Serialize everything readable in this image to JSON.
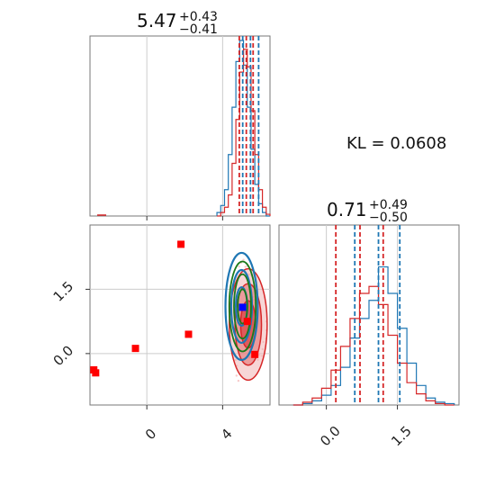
{
  "kl": {
    "text": "KL = 0.0608"
  },
  "chart_data": [
    {
      "type": "histogram",
      "panel": "marginal-param-1",
      "title": {
        "value": "5.47",
        "plus": "+0.43",
        "minus": "−0.41"
      },
      "xlim": [
        -3,
        6.5
      ],
      "grid": true,
      "series": [
        {
          "color": "#1f77b4",
          "x": [
            3.8,
            4.0,
            4.2,
            4.4,
            4.6,
            4.8,
            5.0,
            5.2,
            5.4,
            5.6,
            5.8,
            6.0,
            6.2,
            6.4
          ],
          "counts": [
            0.02,
            0.06,
            0.15,
            0.35,
            0.62,
            0.88,
            1.0,
            0.86,
            0.62,
            0.38,
            0.18,
            0.07,
            0.02,
            0.0
          ],
          "quantiles": [
            5.06,
            5.47,
            5.9
          ]
        },
        {
          "color": "#d62728",
          "x": [
            3.8,
            4.0,
            4.2,
            4.4,
            4.6,
            4.8,
            5.0,
            5.2,
            5.4,
            5.6,
            5.8,
            6.0,
            6.2,
            6.4
          ],
          "counts": [
            0.0,
            0.02,
            0.05,
            0.12,
            0.3,
            0.55,
            0.82,
            0.95,
            0.85,
            0.6,
            0.35,
            0.15,
            0.05,
            0.01
          ],
          "quantiles": [
            4.88,
            5.25,
            5.61
          ]
        }
      ]
    },
    {
      "type": "scatter-contour",
      "panel": "joint",
      "xlim": [
        -3,
        6.5
      ],
      "ylim": [
        -1.2,
        3.0
      ],
      "xticks": [
        "0",
        "4"
      ],
      "yticks": [
        "0.0",
        "1.5"
      ],
      "grid": true,
      "red_markers": [
        {
          "x": -2.8,
          "y": -0.38
        },
        {
          "x": -2.7,
          "y": -0.45
        },
        {
          "x": -0.6,
          "y": 0.12
        },
        {
          "x": 1.8,
          "y": 2.55
        },
        {
          "x": 2.2,
          "y": 0.45
        },
        {
          "x": 5.3,
          "y": 0.75
        },
        {
          "x": 5.7,
          "y": -0.02
        }
      ],
      "blue_marker": {
        "x": 5.05,
        "y": 1.08
      },
      "contours": {
        "red": {
          "center": [
            5.35,
            0.68
          ],
          "rx": [
            0.4,
            0.7,
            1.0
          ],
          "ry": [
            0.55,
            0.95,
            1.3
          ]
        },
        "blue": {
          "center": [
            5.0,
            1.1
          ],
          "rx": [
            0.3,
            0.55,
            0.85
          ],
          "ry": [
            0.45,
            0.85,
            1.25
          ]
        },
        "green": {
          "center": [
            5.05,
            1.1
          ],
          "rx": [
            0.25,
            0.45,
            0.7
          ],
          "ry": [
            0.4,
            0.75,
            1.05
          ]
        }
      }
    },
    {
      "type": "histogram",
      "panel": "marginal-param-2",
      "title": {
        "value": "0.71",
        "plus": "+0.49",
        "minus": "−0.50"
      },
      "xlim": [
        -1.0,
        2.8
      ],
      "xticks": [
        "0.0",
        "1.5"
      ],
      "grid": true,
      "series": [
        {
          "color": "#1f77b4",
          "x": [
            -0.6,
            -0.4,
            -0.2,
            0.0,
            0.2,
            0.4,
            0.6,
            0.8,
            1.0,
            1.2,
            1.4,
            1.6,
            1.8,
            2.0,
            2.2,
            2.4,
            2.6
          ],
          "counts": [
            0.0,
            0.01,
            0.03,
            0.07,
            0.14,
            0.27,
            0.48,
            0.62,
            0.75,
            0.99,
            0.8,
            0.55,
            0.3,
            0.14,
            0.05,
            0.02,
            0.01
          ],
          "quantiles": [
            0.6,
            1.1,
            1.55
          ]
        },
        {
          "color": "#d62728",
          "x": [
            -0.6,
            -0.4,
            -0.2,
            0.0,
            0.2,
            0.4,
            0.6,
            0.8,
            1.0,
            1.2,
            1.4,
            1.6,
            1.8,
            2.0,
            2.2,
            2.4,
            2.6
          ],
          "counts": [
            0.0,
            0.02,
            0.05,
            0.12,
            0.25,
            0.42,
            0.62,
            0.8,
            0.85,
            0.72,
            0.5,
            0.3,
            0.16,
            0.08,
            0.03,
            0.01,
            0.0
          ],
          "quantiles": [
            0.2,
            0.71,
            1.2
          ]
        }
      ]
    }
  ]
}
